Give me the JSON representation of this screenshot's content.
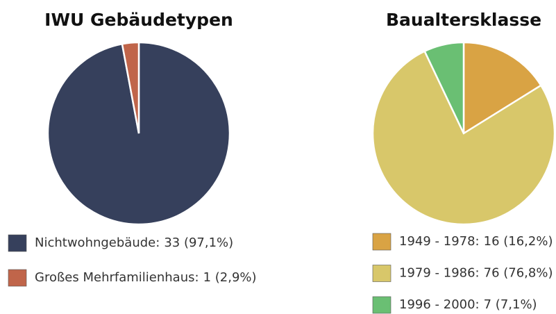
{
  "chart_data": [
    {
      "type": "pie",
      "title": "IWU Gebäudetypen",
      "categories": [
        "Nichtwohngebäude:",
        "Großes Mehrfamilienhaus:"
      ],
      "values": [
        33,
        1
      ],
      "value_labels": [
        "33 (97,1%)",
        "1 (2,9%)"
      ],
      "colors": [
        "#36405c",
        "#c0654a"
      ]
    },
    {
      "type": "pie",
      "title": "Baualtersklasse",
      "categories": [
        "1949 - 1978:",
        "1979 - 1986:",
        "1996 - 2000:"
      ],
      "values": [
        16,
        76,
        7
      ],
      "value_labels": [
        "16 (16,2%)",
        "76 (76,8%)",
        "7 (7,1%)"
      ],
      "colors": [
        "#d9a344",
        "#d8c76a",
        "#6abf73"
      ]
    }
  ]
}
